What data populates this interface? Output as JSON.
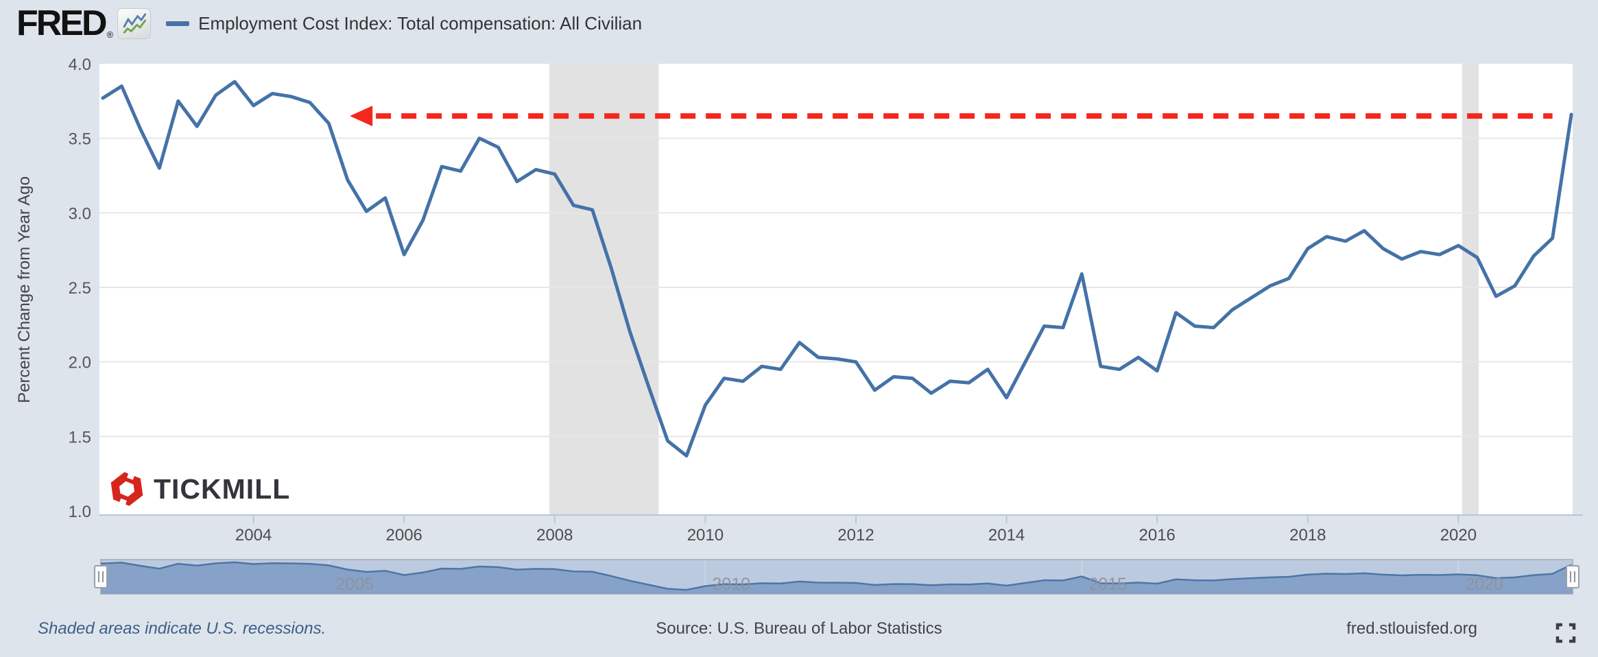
{
  "page": {
    "background": "#dee4ec"
  },
  "header": {
    "brand": "FRED",
    "registered": "®",
    "legend_label": "Employment Cost Index: Total compensation: All Civilian",
    "legend_color": "#4572a7"
  },
  "chart_data": {
    "type": "line",
    "title": "",
    "xlabel": "",
    "ylabel": "Percent Change from Year Ago",
    "ylim": [
      1.0,
      4.0
    ],
    "xlim": [
      2002.0,
      2021.5
    ],
    "grid": "horizontal",
    "legend_position": "top-left",
    "y_ticks": [
      1.0,
      1.5,
      2.0,
      2.5,
      3.0,
      3.5,
      4.0
    ],
    "x_ticks": [
      2004,
      2006,
      2008,
      2010,
      2012,
      2014,
      2016,
      2018,
      2020
    ],
    "series": [
      {
        "name": "Employment Cost Index: Total compensation: All Civilian",
        "color": "#4572a7",
        "frequency": "quarterly",
        "x": [
          2002.0,
          2002.25,
          2002.5,
          2002.75,
          2003.0,
          2003.25,
          2003.5,
          2003.75,
          2004.0,
          2004.25,
          2004.5,
          2004.75,
          2005.0,
          2005.25,
          2005.5,
          2005.75,
          2006.0,
          2006.25,
          2006.5,
          2006.75,
          2007.0,
          2007.25,
          2007.5,
          2007.75,
          2008.0,
          2008.25,
          2008.5,
          2008.75,
          2009.0,
          2009.25,
          2009.5,
          2009.75,
          2010.0,
          2010.25,
          2010.5,
          2010.75,
          2011.0,
          2011.25,
          2011.5,
          2011.75,
          2012.0,
          2012.25,
          2012.5,
          2012.75,
          2013.0,
          2013.25,
          2013.5,
          2013.75,
          2014.0,
          2014.25,
          2014.5,
          2014.75,
          2015.0,
          2015.25,
          2015.5,
          2015.75,
          2016.0,
          2016.25,
          2016.5,
          2016.75,
          2017.0,
          2017.25,
          2017.5,
          2017.75,
          2018.0,
          2018.25,
          2018.5,
          2018.75,
          2019.0,
          2019.25,
          2019.5,
          2019.75,
          2020.0,
          2020.25,
          2020.5,
          2020.75,
          2021.0,
          2021.25,
          2021.5
        ],
        "values": [
          3.77,
          3.85,
          3.56,
          3.3,
          3.75,
          3.58,
          3.79,
          3.88,
          3.72,
          3.8,
          3.78,
          3.74,
          3.6,
          3.22,
          3.01,
          3.1,
          2.72,
          2.95,
          3.31,
          3.28,
          3.5,
          3.44,
          3.21,
          3.29,
          3.26,
          3.05,
          3.02,
          2.63,
          2.2,
          1.83,
          1.47,
          1.37,
          1.71,
          1.89,
          1.87,
          1.97,
          1.95,
          2.13,
          2.03,
          2.02,
          2.0,
          1.81,
          1.9,
          1.89,
          1.79,
          1.87,
          1.86,
          1.95,
          1.76,
          2.0,
          2.24,
          2.23,
          2.59,
          1.97,
          1.95,
          2.03,
          1.94,
          2.33,
          2.24,
          2.23,
          2.35,
          2.43,
          2.51,
          2.56,
          2.76,
          2.84,
          2.81,
          2.88,
          2.76,
          2.69,
          2.74,
          2.72,
          2.78,
          2.7,
          2.44,
          2.51,
          2.71,
          2.83,
          3.66
        ]
      }
    ],
    "recessions": [
      [
        2007.93,
        2009.38
      ],
      [
        2020.05,
        2020.27
      ]
    ],
    "recession_color": "#e2e2e2",
    "annotation": {
      "shape": "dashed-line-with-left-arrowhead",
      "color": "#f5271d",
      "y_value": 3.65,
      "x_start": 2005.28,
      "x_end": 2021.25
    }
  },
  "navigator": {
    "year_labels": [
      2005,
      2010,
      2015,
      2020
    ],
    "selected_range": "full",
    "background": "#bccadf",
    "area_fill": "#87a2c8",
    "line_color": "#4b76a8"
  },
  "watermark": {
    "brand": "TICKMILL",
    "icon_color": "#d6251d"
  },
  "footer": {
    "recession_note": "Shaded areas indicate U.S. recessions.",
    "source": "Source: U.S. Bureau of Labor Statistics",
    "site": "fred.stlouisfed.org"
  },
  "icons": {
    "fred_mini_chart": "zigzag-lines-icon",
    "fullscreen": "expand-corners-icon",
    "navigator_handle": "grip-bars-icon"
  }
}
